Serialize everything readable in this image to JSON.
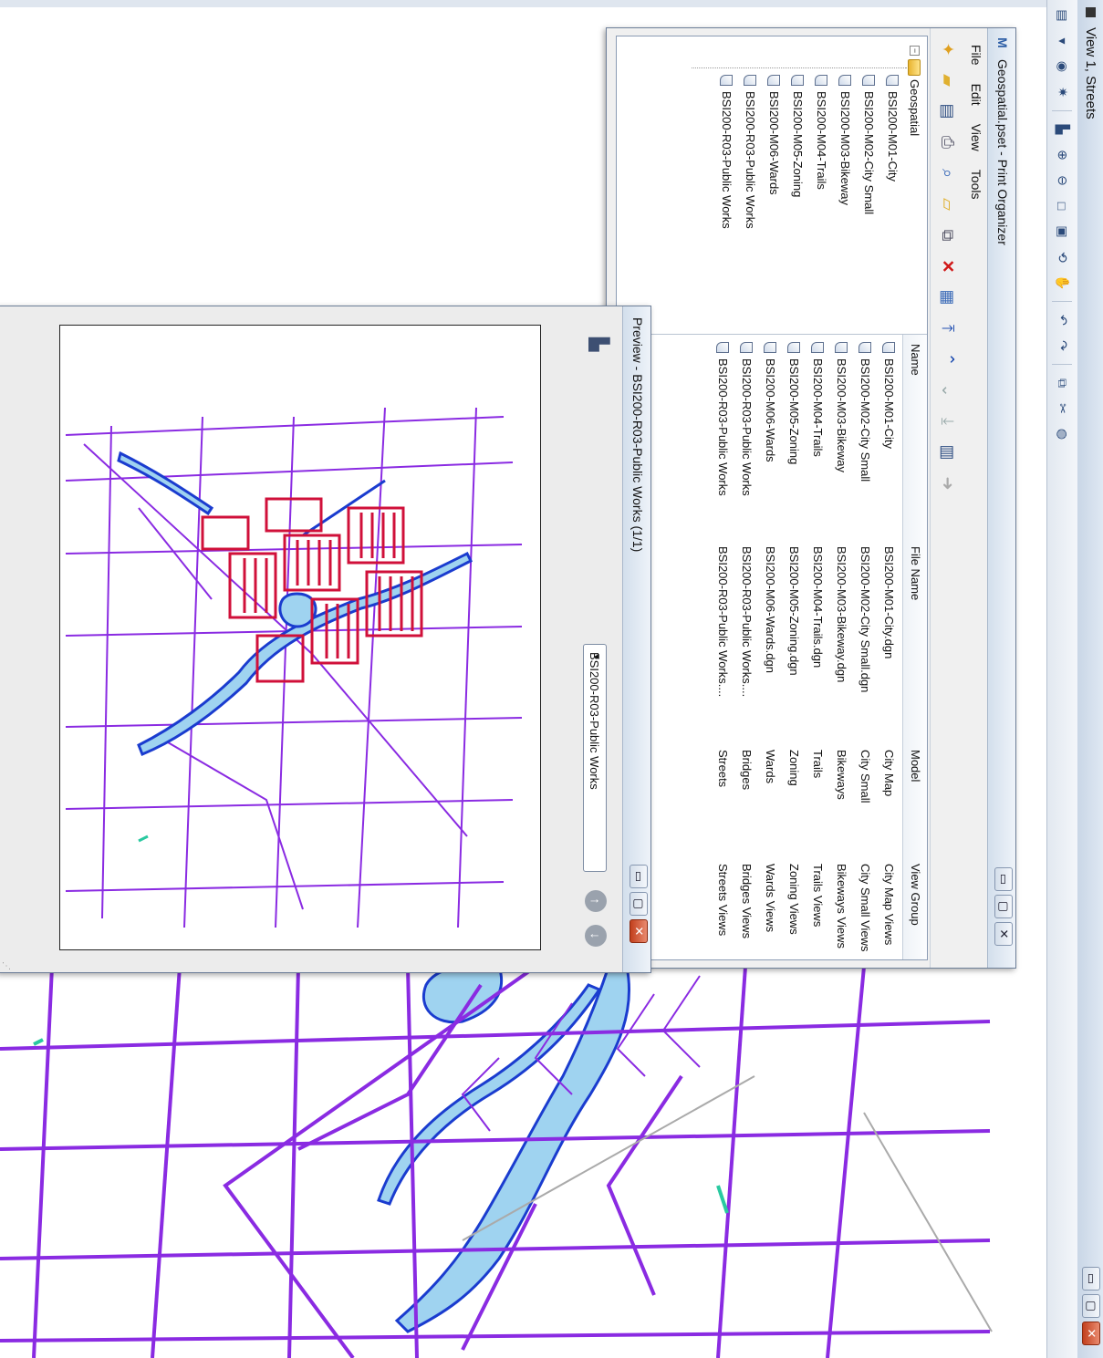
{
  "view_window": {
    "title": "View 1, Streets",
    "buttons": {
      "minimize": "▭",
      "maximize": "▢",
      "close": "✕"
    }
  },
  "view_toolbar_icons": [
    "view-groups-icon",
    "view-attributes-icon",
    "display-style-icon",
    "update-view-icon",
    "zoom-in-icon",
    "zoom-out-icon",
    "window-area-icon",
    "fit-view-icon",
    "rotate-view-icon",
    "pan-view-icon",
    "view-previous-icon",
    "view-next-icon",
    "copy-view-icon",
    "clip-volume-icon",
    "camera-icon"
  ],
  "print_organizer": {
    "title": "Geospatial.pset - Print Organizer",
    "menu": [
      "File",
      "Edit",
      "View",
      "Tools"
    ],
    "buttons": {
      "minimize": "▭",
      "maximize": "▢",
      "close": "✕"
    },
    "tree": {
      "root": "Geospatial",
      "items": [
        "BSI200-M01-City",
        "BSI200-M02-City Small",
        "BSI200-M03-Bikeway",
        "BSI200-M04-Trails",
        "BSI200-M05-Zoning",
        "BSI200-M06-Wards",
        "BSI200-R03-Public Works",
        "BSI200-R03-Public Works"
      ]
    },
    "columns": {
      "name": "Name",
      "file_name": "File Name",
      "model": "Model",
      "view_group": "View Group"
    },
    "rows": [
      {
        "name": "BSI200-M01-City",
        "file": "BSI200-M01-City.dgn",
        "model": "City Map",
        "view_group": "City Map Views"
      },
      {
        "name": "BSI200-M02-City Small",
        "file": "BSI200-M02-City Small.dgn",
        "model": "City Small",
        "view_group": "City Small Views"
      },
      {
        "name": "BSI200-M03-Bikeway",
        "file": "BSI200-M03-Bikeway.dgn",
        "model": "Bikeways",
        "view_group": "Bikeways Views"
      },
      {
        "name": "BSI200-M04-Trails",
        "file": "BSI200-M04-Trails.dgn",
        "model": "Trails",
        "view_group": "Trails Views"
      },
      {
        "name": "BSI200-M05-Zoning",
        "file": "BSI200-M05-Zoning.dgn",
        "model": "Zoning",
        "view_group": "Zoning Views"
      },
      {
        "name": "BSI200-M06-Wards",
        "file": "BSI200-M06-Wards.dgn",
        "model": "Wards",
        "view_group": "Wards Views"
      },
      {
        "name": "BSI200-R03-Public Works",
        "file": "BSI200-R03-Public Works....",
        "model": "Bridges",
        "view_group": "Bridges Views"
      },
      {
        "name": "BSI200-R03-Public Works",
        "file": "BSI200-R03-Public Works....",
        "model": "Streets",
        "view_group": "Streets Views"
      }
    ]
  },
  "preview": {
    "title": "Preview - BSI200-R03-Public Works  (1/1)",
    "selected_sheet": "BSI200-R03-Public Works",
    "buttons": {
      "minimize": "▭",
      "maximize": "▢",
      "close": "✕"
    }
  },
  "colors": {
    "roads": "#8a2be2",
    "water": "#1a3ccf",
    "water_fill": "#9fd3f0",
    "parcels": "#d0103a",
    "highlight": "#29c9a0"
  }
}
